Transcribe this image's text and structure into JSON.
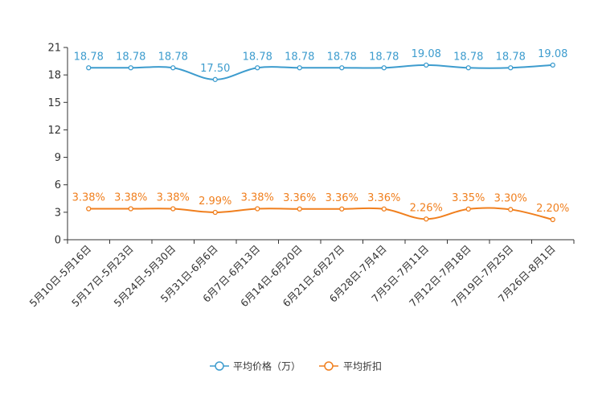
{
  "chart_data": {
    "type": "line",
    "categories": [
      "5月10日-5月16日",
      "5月17日-5月23日",
      "5月24日-5月30日",
      "5月31日-6月6日",
      "6月7日-6月13日",
      "6月14日-6月20日",
      "6月21日-6月27日",
      "6月28日-7月4日",
      "7月5日-7月11日",
      "7月12日-7月18日",
      "7月19日-7月25日",
      "7月26日-8月1日"
    ],
    "series": [
      {
        "name": "平均价格（万）",
        "color": "#3d9cce",
        "values": [
          18.78,
          18.78,
          18.78,
          17.5,
          18.78,
          18.78,
          18.78,
          18.78,
          19.08,
          18.78,
          18.78,
          19.08
        ],
        "labels": [
          "18.78",
          "18.78",
          "18.78",
          "17.50",
          "18.78",
          "18.78",
          "18.78",
          "18.78",
          "19.08",
          "18.78",
          "18.78",
          "19.08"
        ]
      },
      {
        "name": "平均折扣",
        "color": "#f07f1e",
        "values": [
          3.38,
          3.38,
          3.38,
          2.99,
          3.38,
          3.36,
          3.36,
          3.36,
          2.26,
          3.35,
          3.3,
          2.2
        ],
        "labels": [
          "3.38%",
          "3.38%",
          "3.38%",
          "2.99%",
          "3.38%",
          "3.36%",
          "3.36%",
          "3.36%",
          "2.26%",
          "3.35%",
          "3.30%",
          "2.20%"
        ]
      }
    ],
    "yticks": [
      "0",
      "3",
      "6",
      "9",
      "12",
      "15",
      "18",
      "21"
    ],
    "ylim": [
      0,
      21
    ],
    "title": "",
    "xlabel": "",
    "ylabel": "",
    "grid": false,
    "legend": "bottom-center"
  }
}
